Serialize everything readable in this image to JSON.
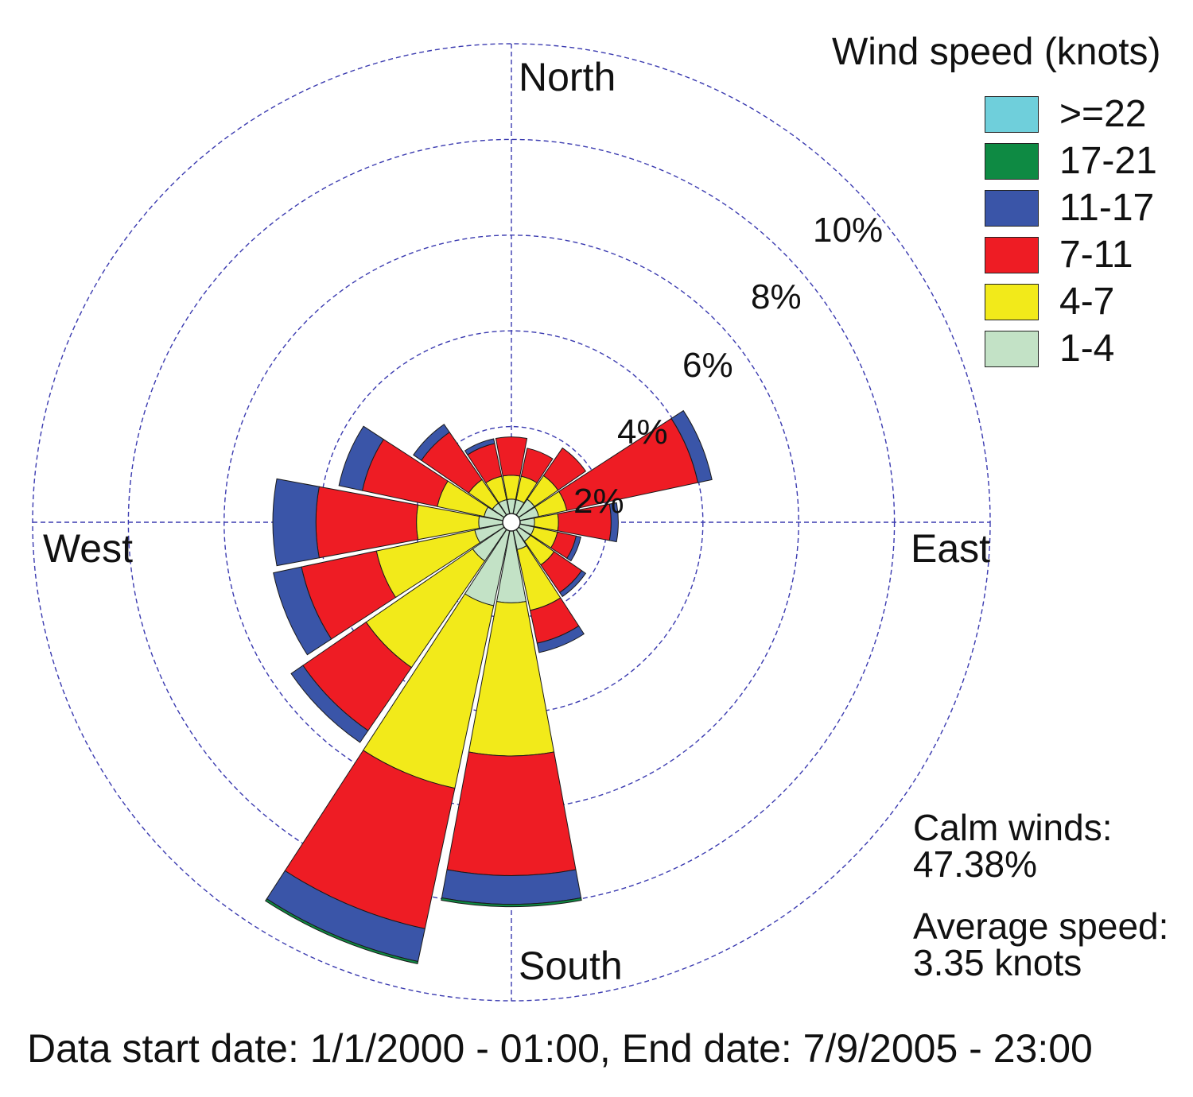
{
  "chart_data": {
    "type": "wind-rose",
    "direction_labels": {
      "north": "North",
      "east": "East",
      "south": "South",
      "west": "West"
    },
    "ring_labels": [
      "2%",
      "4%",
      "6%",
      "8%",
      "10%"
    ],
    "rings_percent": [
      2,
      4,
      6,
      8,
      10
    ],
    "direction_sectors": 16,
    "legend_title": "Wind speed (knots)",
    "speed_bins": [
      {
        "label": "1-4",
        "color": "#c3e2c6"
      },
      {
        "label": "4-7",
        "color": "#f2ea1a"
      },
      {
        "label": "7-11",
        "color": "#ee1c24"
      },
      {
        "label": "11-17",
        "color": "#3a55a8"
      },
      {
        "label": "17-21",
        "color": "#0e8a43"
      },
      {
        "label": ">=22",
        "color": "#6fcfdb"
      }
    ],
    "series": [
      {
        "direction_deg": 0,
        "cumulative_percent": [
          0.3,
          0.8,
          1.6,
          1.6,
          1.6,
          1.6
        ]
      },
      {
        "direction_deg": 22.5,
        "cumulative_percent": [
          0.3,
          0.8,
          1.4,
          1.4,
          1.4,
          1.4
        ]
      },
      {
        "direction_deg": 45,
        "cumulative_percent": [
          0.4,
          1.0,
          1.7,
          1.7,
          1.7,
          1.7
        ]
      },
      {
        "direction_deg": 67.5,
        "cumulative_percent": [
          0.4,
          1.0,
          3.8,
          4.1,
          4.1,
          4.1
        ]
      },
      {
        "direction_deg": 90,
        "cumulative_percent": [
          0.3,
          0.8,
          1.9,
          2.05,
          2.05,
          2.05
        ]
      },
      {
        "direction_deg": 112.5,
        "cumulative_percent": [
          0.3,
          0.8,
          1.2,
          1.3,
          1.3,
          1.3
        ]
      },
      {
        "direction_deg": 135,
        "cumulative_percent": [
          0.3,
          0.9,
          1.6,
          1.7,
          1.7,
          1.7
        ]
      },
      {
        "direction_deg": 157.5,
        "cumulative_percent": [
          0.4,
          1.7,
          2.4,
          2.6,
          2.6,
          2.6
        ]
      },
      {
        "direction_deg": 180,
        "cumulative_percent": [
          1.5,
          4.7,
          7.2,
          7.8,
          7.85,
          7.85
        ]
      },
      {
        "direction_deg": 202.5,
        "cumulative_percent": [
          1.6,
          5.5,
          8.5,
          9.2,
          9.25,
          9.25
        ]
      },
      {
        "direction_deg": 225,
        "cumulative_percent": [
          0.8,
          3.5,
          5.1,
          5.4,
          5.4,
          5.4
        ]
      },
      {
        "direction_deg": 247.5,
        "cumulative_percent": [
          0.6,
          2.7,
          4.3,
          4.9,
          4.9,
          4.9
        ]
      },
      {
        "direction_deg": 270,
        "cumulative_percent": [
          0.5,
          1.8,
          3.9,
          4.8,
          4.8,
          4.8
        ]
      },
      {
        "direction_deg": 292.5,
        "cumulative_percent": [
          0.4,
          1.4,
          3.0,
          3.5,
          3.5,
          3.5
        ]
      },
      {
        "direction_deg": 315,
        "cumulative_percent": [
          0.3,
          0.9,
          2.1,
          2.3,
          2.3,
          2.3
        ]
      },
      {
        "direction_deg": 337.5,
        "cumulative_percent": [
          0.3,
          0.8,
          1.5,
          1.6,
          1.6,
          1.6
        ]
      }
    ],
    "calm_label": "Calm winds:",
    "calm_value": "47.38%",
    "avg_label": "Average speed:",
    "avg_value": "3.35 knots",
    "grid": true,
    "legend_position": "top-right"
  },
  "footer": "Data start date: 1/1/2000 - 01:00, End date: 7/9/2005 - 23:00"
}
